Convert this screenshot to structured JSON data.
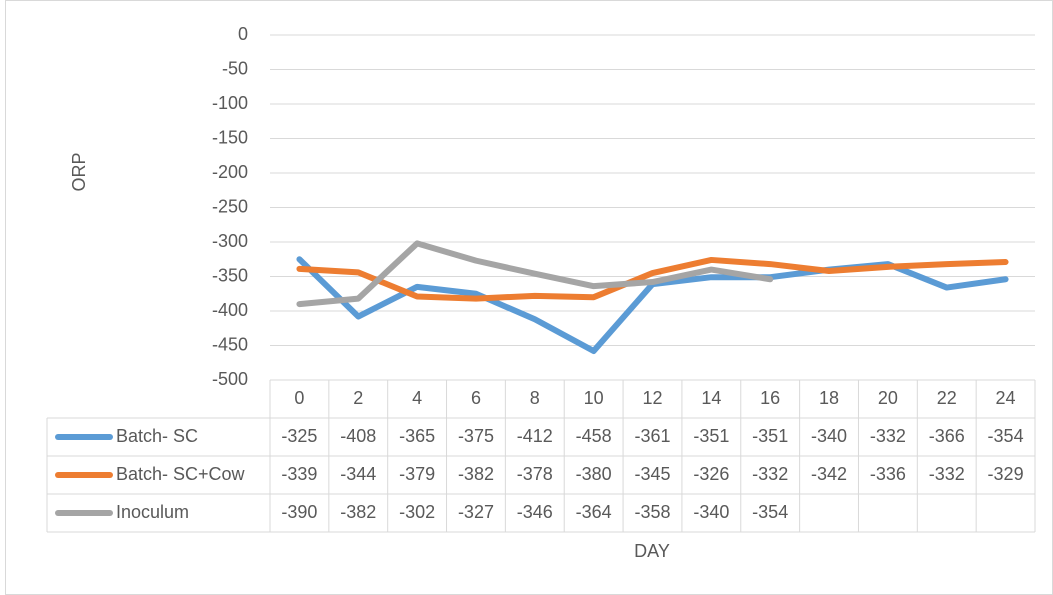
{
  "chart_data": {
    "type": "line",
    "categories": [
      0,
      2,
      4,
      6,
      8,
      10,
      12,
      14,
      16,
      18,
      20,
      22,
      24
    ],
    "series": [
      {
        "name": "Batch- SC",
        "color": "#5b9bd5",
        "values": [
          -325,
          -408,
          -365,
          -375,
          -412,
          -458,
          -361,
          -351,
          -351,
          -340,
          -332,
          -366,
          -354
        ]
      },
      {
        "name": "Batch- SC+Cow",
        "color": "#ed7d31",
        "values": [
          -339,
          -344,
          -379,
          -382,
          -378,
          -380,
          -345,
          -326,
          -332,
          -342,
          -336,
          -332,
          -329
        ]
      },
      {
        "name": "Inoculum",
        "color": "#a5a5a5",
        "values": [
          -390,
          -382,
          -302,
          -327,
          -346,
          -364,
          -358,
          -340,
          -354,
          null,
          null,
          null,
          null
        ]
      }
    ],
    "ylim": [
      -500,
      0
    ],
    "yticks": [
      0,
      -50,
      -100,
      -150,
      -200,
      -250,
      -300,
      -350,
      -400,
      -450,
      -500
    ],
    "y_label": "ORP",
    "x_label": "DAY",
    "grid": true
  }
}
